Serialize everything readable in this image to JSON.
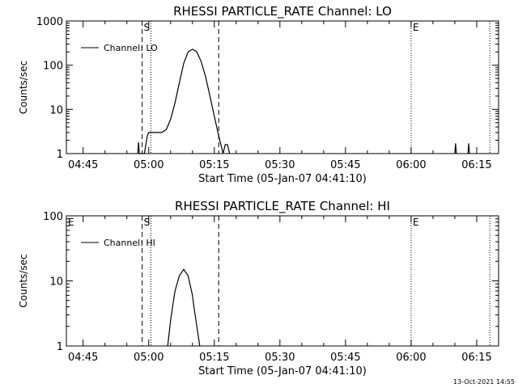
{
  "footer_date": "13-Oct-2021 14:55",
  "chart_data": [
    {
      "type": "line",
      "title": "RHESSI PARTICLE_RATE Channel: LO",
      "xlabel": "Start Time (05-Jan-07 04:41:10)",
      "ylabel": "Counts/sec",
      "yscale": "log",
      "ylim": [
        1,
        1000
      ],
      "yticks": [
        1,
        10,
        100,
        1000
      ],
      "ytick_labels": [
        "1",
        "10",
        "100",
        "1000"
      ],
      "xlim": [
        "04:41:10",
        "06:20:00"
      ],
      "xticks": [
        "04:45",
        "05:00",
        "05:15",
        "05:30",
        "05:45",
        "06:00",
        "06:15"
      ],
      "legend": "top-left",
      "series": [
        {
          "name": "Channel: LO",
          "points": [
            [
              "04:57:30",
              1
            ],
            [
              "04:57:40",
              1.8
            ],
            [
              "04:57:50",
              1
            ],
            [
              "04:59:00",
              1
            ],
            [
              "04:59:20",
              1.6
            ],
            [
              "04:59:40",
              2.5
            ],
            [
              "05:00:00",
              3
            ],
            [
              "05:01:00",
              3
            ],
            [
              "05:02:00",
              3
            ],
            [
              "05:03:00",
              3
            ],
            [
              "05:04:00",
              3.5
            ],
            [
              "05:05:00",
              6
            ],
            [
              "05:06:00",
              14
            ],
            [
              "05:07:00",
              40
            ],
            [
              "05:08:00",
              110
            ],
            [
              "05:09:00",
              200
            ],
            [
              "05:10:00",
              230
            ],
            [
              "05:11:00",
              200
            ],
            [
              "05:12:00",
              120
            ],
            [
              "05:13:00",
              55
            ],
            [
              "05:14:00",
              20
            ],
            [
              "05:15:00",
              7
            ],
            [
              "05:16:00",
              2.5
            ],
            [
              "05:16:30",
              1.6
            ],
            [
              "05:17:00",
              1
            ],
            [
              "05:17:30",
              1.6
            ],
            [
              "05:18:00",
              1.6
            ],
            [
              "05:18:30",
              1
            ],
            [
              "06:10:00",
              1
            ],
            [
              "06:10:10",
              1.7
            ],
            [
              "06:10:20",
              1
            ],
            [
              "06:13:00",
              1
            ],
            [
              "06:13:10",
              1.7
            ],
            [
              "06:13:20",
              1
            ]
          ]
        }
      ],
      "markers": [
        {
          "label": "S",
          "time": "04:58:30",
          "style": "dashed"
        },
        {
          "label": "",
          "time": "05:00:30",
          "style": "dotted"
        },
        {
          "label": "",
          "time": "05:16:00",
          "style": "dashed"
        },
        {
          "label": "E",
          "time": "06:00:00",
          "style": "dotted"
        },
        {
          "label": "",
          "time": "06:18:00",
          "style": "dotted"
        }
      ]
    },
    {
      "type": "line",
      "title": "RHESSI PARTICLE_RATE Channel: HI",
      "xlabel": "Start Time (05-Jan-07 04:41:10)",
      "ylabel": "Counts/sec",
      "yscale": "log",
      "ylim": [
        1,
        100
      ],
      "yticks": [
        1,
        10,
        100
      ],
      "ytick_labels": [
        "1",
        "10",
        "100"
      ],
      "xlim": [
        "04:41:10",
        "06:20:00"
      ],
      "xticks": [
        "04:45",
        "05:00",
        "05:15",
        "05:30",
        "05:45",
        "06:00",
        "06:15"
      ],
      "legend": "top-left",
      "series": [
        {
          "name": "Channel: HI",
          "points": [
            [
              "05:04:20",
              1
            ],
            [
              "05:05:00",
              2.5
            ],
            [
              "05:06:00",
              7
            ],
            [
              "05:07:00",
              12
            ],
            [
              "05:08:00",
              15
            ],
            [
              "05:09:00",
              12
            ],
            [
              "05:10:00",
              6
            ],
            [
              "05:10:20",
              4
            ],
            [
              "05:11:00",
              2
            ],
            [
              "05:11:40",
              1
            ]
          ]
        }
      ],
      "markers": [
        {
          "label": "E",
          "time": "04:41:10",
          "style": "dotted"
        },
        {
          "label": "S",
          "time": "04:58:30",
          "style": "dashed"
        },
        {
          "label": "",
          "time": "05:00:30",
          "style": "dotted"
        },
        {
          "label": "",
          "time": "05:16:00",
          "style": "dashed"
        },
        {
          "label": "E",
          "time": "06:00:00",
          "style": "dotted"
        },
        {
          "label": "",
          "time": "06:18:00",
          "style": "dotted"
        }
      ]
    }
  ]
}
